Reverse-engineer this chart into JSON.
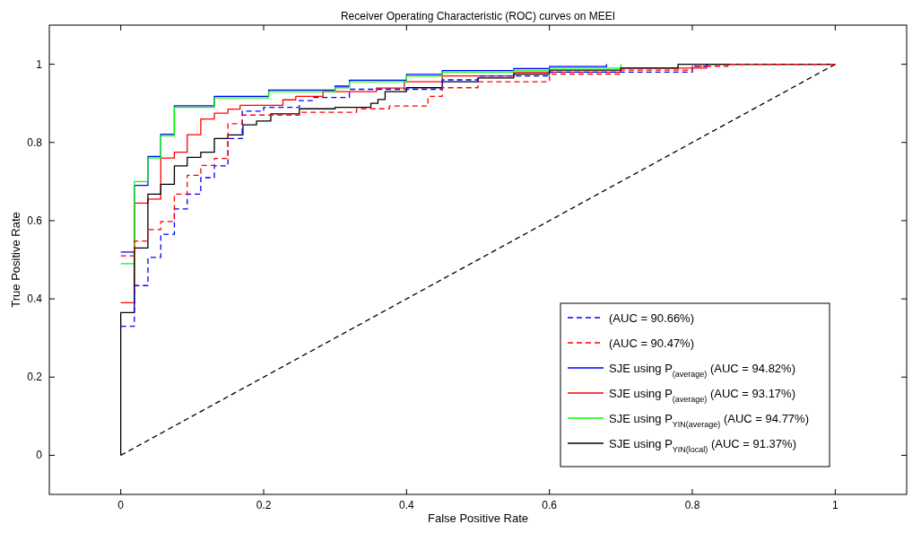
{
  "chart_data": {
    "type": "step",
    "title": "Receiver Operating Characteristic (ROC) curves on MEEI",
    "xlabel": "False Positive Rate",
    "ylabel": "True Positive Rate",
    "xlim": [
      -0.1,
      1.1
    ],
    "ylim": [
      -0.1,
      1.1
    ],
    "xticks": [
      0,
      0.2,
      0.4,
      0.6,
      0.8,
      1
    ],
    "yticks": [
      0,
      0.2,
      0.4,
      0.6,
      0.8,
      1
    ],
    "grid": false,
    "legend": "bottom right",
    "series": [
      {
        "name": "(AUC = 90.66%)",
        "color": "#0000ff",
        "line_style": "dashed",
        "x": [
          0,
          0.019,
          0.038,
          0.056,
          0.075,
          0.093,
          0.112,
          0.131,
          0.15,
          0.17,
          0.2,
          0.25,
          0.27,
          0.32,
          0.45,
          0.5,
          0.6,
          0.8,
          0.82
        ],
        "values": [
          0.33,
          0.434,
          0.506,
          0.565,
          0.63,
          0.668,
          0.71,
          0.74,
          0.81,
          0.88,
          0.89,
          0.907,
          0.915,
          0.936,
          0.96,
          0.97,
          0.98,
          0.995,
          1
        ]
      },
      {
        "name": "(AUC = 90.47%)",
        "color": "#ff0000",
        "line_style": "dashed",
        "x": [
          0,
          0.019,
          0.038,
          0.056,
          0.075,
          0.093,
          0.112,
          0.131,
          0.15,
          0.17,
          0.25,
          0.33,
          0.376,
          0.43,
          0.45,
          0.5,
          0.6,
          0.7,
          0.8,
          0.85,
          1
        ],
        "values": [
          0.51,
          0.548,
          0.577,
          0.598,
          0.668,
          0.716,
          0.741,
          0.759,
          0.848,
          0.87,
          0.877,
          0.886,
          0.893,
          0.918,
          0.94,
          0.955,
          0.975,
          0.985,
          0.995,
          1,
          1
        ]
      },
      {
        "name": "SJE using P$_{(average)}$ (AUC = 94.82%)",
        "color": "#0000ff",
        "line_style": "solid",
        "x": [
          0,
          0.019,
          0.038,
          0.056,
          0.075,
          0.131,
          0.207,
          0.3,
          0.32,
          0.4,
          0.45,
          0.55,
          0.6,
          0.68
        ],
        "values": [
          0.52,
          0.69,
          0.764,
          0.821,
          0.894,
          0.918,
          0.934,
          0.944,
          0.959,
          0.974,
          0.984,
          0.989,
          0.994,
          1
        ]
      },
      {
        "name": "SJE using P$_{(average)}$ (AUC = 93.17%)",
        "color": "#ff0000",
        "line_style": "solid",
        "x": [
          0,
          0.019,
          0.038,
          0.056,
          0.075,
          0.093,
          0.112,
          0.131,
          0.15,
          0.167,
          0.227,
          0.245,
          0.283,
          0.358,
          0.397,
          0.45,
          0.55,
          0.7,
          0.82,
          1
        ],
        "values": [
          0.39,
          0.645,
          0.655,
          0.76,
          0.775,
          0.82,
          0.86,
          0.875,
          0.885,
          0.895,
          0.909,
          0.918,
          0.93,
          0.939,
          0.955,
          0.97,
          0.98,
          0.99,
          1,
          1
        ]
      },
      {
        "name": "SJE using P$_{YIN(average)}$ (AUC = 94.77%)",
        "color": "#00ff00",
        "line_style": "solid",
        "x": [
          0,
          0.019,
          0.038,
          0.056,
          0.075,
          0.131,
          0.207,
          0.3,
          0.32,
          0.4,
          0.45,
          0.55,
          0.6,
          0.7
        ],
        "values": [
          0.49,
          0.7,
          0.76,
          0.817,
          0.89,
          0.914,
          0.93,
          0.94,
          0.955,
          0.97,
          0.98,
          0.985,
          0.99,
          1
        ]
      },
      {
        "name": "SJE using P$_{YIN(local)}$ (AUC = 91.37%)",
        "color": "#000000",
        "line_style": "solid",
        "x": [
          0,
          0,
          0.019,
          0.038,
          0.056,
          0.075,
          0.093,
          0.112,
          0.131,
          0.15,
          0.171,
          0.19,
          0.21,
          0.25,
          0.3,
          0.35,
          0.36,
          0.37,
          0.4,
          0.45,
          0.5,
          0.55,
          0.6,
          0.7,
          0.78,
          1
        ],
        "values": [
          0,
          0.365,
          0.53,
          0.668,
          0.693,
          0.74,
          0.762,
          0.775,
          0.81,
          0.819,
          0.845,
          0.855,
          0.873,
          0.886,
          0.89,
          0.9,
          0.91,
          0.93,
          0.94,
          0.955,
          0.965,
          0.975,
          0.985,
          0.99,
          1,
          1
        ]
      },
      {
        "type": "line",
        "color": "#000000",
        "line_style": "dashed",
        "x": [
          0,
          1
        ],
        "values": [
          0,
          1
        ]
      }
    ]
  }
}
